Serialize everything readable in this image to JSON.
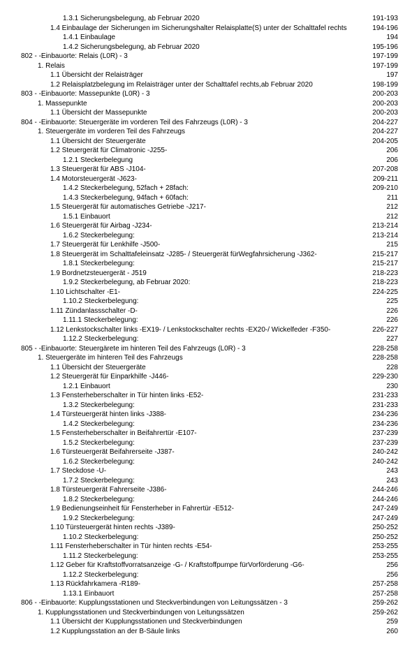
{
  "rows": [
    {
      "indent": 4,
      "label": "1.3.1 Sicherungsbelegung, ab Februar 2020",
      "page": "191-193"
    },
    {
      "indent": 3,
      "label": "1.4 Einbaulage der Sicherungen im Sicherungshalter Relaisplatte(S) unter der Schalttafel rechts",
      "page": "194-196"
    },
    {
      "indent": 4,
      "label": "1.4.1 Einbaulage",
      "page": "194"
    },
    {
      "indent": 4,
      "label": "1.4.2 Sicherungsbelegung, ab Februar 2020",
      "page": "195-196"
    },
    {
      "indent": 0,
      "label": "802 - -Einbauorte: Relais (L0R) - 3",
      "page": "197-199"
    },
    {
      "indent": 2,
      "label": "1. Relais",
      "page": "197-199"
    },
    {
      "indent": 3,
      "label": "1.1 Übersicht der Relaisträger",
      "page": "197"
    },
    {
      "indent": 3,
      "label": "1.2 Relaisplatzbelegung im Relaisträger unter der Schalttafel rechts,ab Februar 2020",
      "page": "198-199"
    },
    {
      "indent": 0,
      "label": "803 - -Einbauorte: Massepunkte (L0R) - 3",
      "page": "200-203"
    },
    {
      "indent": 2,
      "label": "1. Massepunkte",
      "page": "200-203"
    },
    {
      "indent": 3,
      "label": "1.1 Übersicht der Massepunkte",
      "page": "200-203"
    },
    {
      "indent": 0,
      "label": "804 - -Einbauorte: Steuergeräte im vorderen Teil des Fahrzeugs (L0R) - 3",
      "page": "204-227"
    },
    {
      "indent": 2,
      "label": "1. Steuergeräte im vorderen Teil des Fahrzeugs",
      "page": "204-227"
    },
    {
      "indent": 3,
      "label": "1.1 Übersicht der Steuergeräte",
      "page": "204-205"
    },
    {
      "indent": 3,
      "label": "1.2 Steuergerät für Climatronic -J255-",
      "page": "206"
    },
    {
      "indent": 4,
      "label": "1.2.1 Steckerbelegung",
      "page": "206"
    },
    {
      "indent": 3,
      "label": "1.3 Steuergerät für ABS -J104-",
      "page": "207-208"
    },
    {
      "indent": 3,
      "label": "1.4 Motorsteuergerät -J623-",
      "page": "209-211"
    },
    {
      "indent": 4,
      "label": "1.4.2 Steckerbelegung, 52fach + 28fach:",
      "page": "209-210"
    },
    {
      "indent": 4,
      "label": "1.4.3 Steckerbelegung, 94fach + 60fach:",
      "page": "211"
    },
    {
      "indent": 3,
      "label": "1.5 Steuergerät für automatisches Getriebe -J217-",
      "page": "212"
    },
    {
      "indent": 4,
      "label": "1.5.1 Einbauort",
      "page": "212"
    },
    {
      "indent": 3,
      "label": "1.6 Steuergerät für Airbag -J234-",
      "page": "213-214"
    },
    {
      "indent": 4,
      "label": "1.6.2 Steckerbelegung:",
      "page": "213-214"
    },
    {
      "indent": 3,
      "label": "1.7 Steuergerät für Lenkhilfe -J500-",
      "page": "215"
    },
    {
      "indent": 3,
      "label": "1.8 Steuergerät im Schalttafeleinsatz -J285- / Steuergerät fürWegfahrsicherung -J362-",
      "page": "215-217"
    },
    {
      "indent": 4,
      "label": "1.8.1 Steckerbelegung:",
      "page": "215-217"
    },
    {
      "indent": 3,
      "label": "1.9 Bordnetzsteuergerät - J519",
      "page": "218-223"
    },
    {
      "indent": 4,
      "label": "1.9.2 Steckerbelegung, ab Februar 2020:",
      "page": "218-223"
    },
    {
      "indent": 3,
      "label": "1.10 Lichtschalter -E1-",
      "page": "224-225"
    },
    {
      "indent": 4,
      "label": "1.10.2 Steckerbelegung:",
      "page": "225"
    },
    {
      "indent": 3,
      "label": "1.11 Zündanlassschalter -D-",
      "page": "226"
    },
    {
      "indent": 4,
      "label": "1.11.1 Steckerbelegung:",
      "page": "226"
    },
    {
      "indent": 3,
      "label": "1.12 Lenkstockschalter links -EX19- / Lenkstockschalter rechts -EX20-/ Wickelfeder -F350-",
      "page": "226-227"
    },
    {
      "indent": 4,
      "label": "1.12.2 Steckerbelegung:",
      "page": "227"
    },
    {
      "indent": 0,
      "label": "805 - -Einbauorte: Steuergärete im hinteren Teil des Fahrzeugs (L0R) - 3",
      "page": "228-258"
    },
    {
      "indent": 2,
      "label": "1. Steuergeräte im hinteren Teil des Fahrzeugs",
      "page": "228-258"
    },
    {
      "indent": 3,
      "label": "1.1 Übersicht der Steuergeräte",
      "page": "228"
    },
    {
      "indent": 3,
      "label": "1.2 Steuergerät für Einparkhilfe -J446-",
      "page": "229-230"
    },
    {
      "indent": 4,
      "label": "1.2.1 Einbauort",
      "page": "230"
    },
    {
      "indent": 3,
      "label": "1.3 Fensterheberschalter in Tür hinten links -E52-",
      "page": "231-233"
    },
    {
      "indent": 4,
      "label": "1.3.2 Steckerbelegung:",
      "page": "231-233"
    },
    {
      "indent": 3,
      "label": "1.4 Türsteuergerät hinten links -J388-",
      "page": "234-236"
    },
    {
      "indent": 4,
      "label": "1.4.2 Steckerbelegung:",
      "page": "234-236"
    },
    {
      "indent": 3,
      "label": "1.5 Fensterheberschalter in Beifahrertür -E107-",
      "page": "237-239"
    },
    {
      "indent": 4,
      "label": "1.5.2 Steckerbelegung:",
      "page": "237-239"
    },
    {
      "indent": 3,
      "label": "1.6 Türsteuergerät Beifahrerseite -J387-",
      "page": "240-242"
    },
    {
      "indent": 4,
      "label": "1.6.2 Steckerbelegung:",
      "page": "240-242"
    },
    {
      "indent": 3,
      "label": "1.7 Steckdose -U-",
      "page": "243"
    },
    {
      "indent": 4,
      "label": "1.7.2 Steckerbelegung:",
      "page": "243"
    },
    {
      "indent": 3,
      "label": "1.8 Türsteuergerät Fahrerseite -J386-",
      "page": "244-246"
    },
    {
      "indent": 4,
      "label": "1.8.2 Steckerbelegung:",
      "page": "244-246"
    },
    {
      "indent": 3,
      "label": "1.9 Bedienungseinheit für Fensterheber in Fahrertür -E512-",
      "page": "247-249"
    },
    {
      "indent": 4,
      "label": "1.9.2 Steckerbelegung:",
      "page": "247-249"
    },
    {
      "indent": 3,
      "label": "1.10 Türsteuergerät hinten rechts -J389-",
      "page": "250-252"
    },
    {
      "indent": 4,
      "label": "1.10.2 Steckerbelegung:",
      "page": "250-252"
    },
    {
      "indent": 3,
      "label": "1.11 Fensterheberschalter in Tür hinten rechts -E54-",
      "page": "253-255"
    },
    {
      "indent": 4,
      "label": "1.11.2 Steckerbelegung:",
      "page": "253-255"
    },
    {
      "indent": 3,
      "label": "1.12 Geber für Kraftstoffvorratsanzeige -G- / Kraftstoffpumpe fürVorförderung -G6-",
      "page": "256"
    },
    {
      "indent": 4,
      "label": "1.12.2 Steckerbelegung:",
      "page": "256"
    },
    {
      "indent": 3,
      "label": "1.13 Rückfahrkamera -R189-",
      "page": "257-258"
    },
    {
      "indent": 4,
      "label": "1.13.1 Einbauort",
      "page": "257-258"
    },
    {
      "indent": 0,
      "label": "806 - -Einbauorte: Kupplungsstationen und Steckverbindungen von Leitungssätzen - 3",
      "page": "259-262"
    },
    {
      "indent": 2,
      "label": "1. Kupplungsstationen und Steckverbindungen von Leitungssätzen",
      "page": "259-262"
    },
    {
      "indent": 3,
      "label": "1.1 Übersicht der Kupplungsstationen und Steckverbindungen",
      "page": "259"
    },
    {
      "indent": 3,
      "label": "1.2 Kupplungsstation an der B-Säule links",
      "page": "260"
    }
  ]
}
